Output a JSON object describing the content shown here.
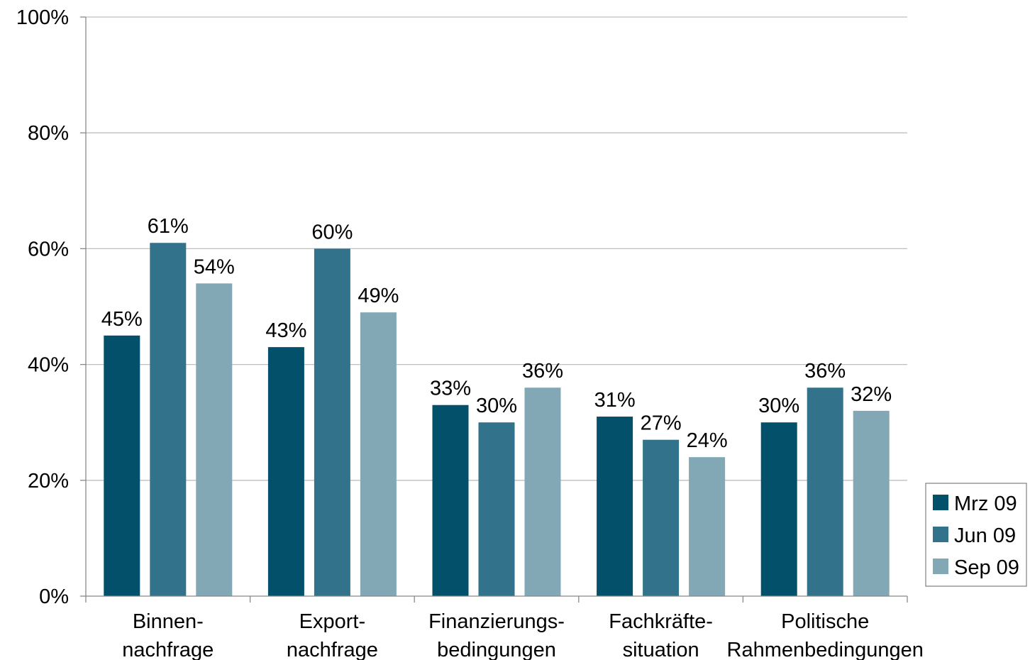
{
  "chart_data": {
    "type": "bar",
    "categories": [
      [
        "Binnen-",
        "nachfrage"
      ],
      [
        "Export-",
        "nachfrage"
      ],
      [
        "Finanzierungs-",
        "bedingungen"
      ],
      [
        "Fachkräfte-",
        "situation"
      ],
      [
        "Politische",
        "Rahmenbedingungen"
      ]
    ],
    "series": [
      {
        "name": "Mrz 09",
        "color": "#03506b",
        "values": [
          45,
          43,
          33,
          31,
          30
        ]
      },
      {
        "name": "Jun 09",
        "color": "#33728b",
        "values": [
          61,
          60,
          30,
          27,
          36
        ]
      },
      {
        "name": "Sep 09",
        "color": "#82a8b6",
        "values": [
          54,
          49,
          36,
          24,
          32
        ]
      }
    ],
    "data_labels": true,
    "value_suffix": "%",
    "ylim": [
      0,
      100
    ],
    "yticks": [
      "0%",
      "20%",
      "40%",
      "60%",
      "80%",
      "100%"
    ],
    "grid": true,
    "legend": "right-bottom",
    "gridline_color": "#bfbfbf"
  }
}
